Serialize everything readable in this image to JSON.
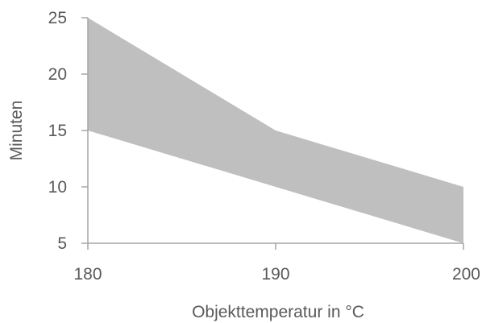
{
  "chart_data": {
    "type": "area",
    "x": [
      180,
      190,
      200
    ],
    "series": [
      {
        "values_lower": [
          15,
          10,
          5
        ],
        "values_upper": [
          25,
          15,
          10
        ]
      }
    ],
    "xlabel": "Objekttemperatur in °C",
    "ylabel": "Minuten",
    "xlim": [
      180,
      200
    ],
    "ylim": [
      5,
      25
    ],
    "xticks": [
      180,
      190,
      200
    ],
    "yticks": [
      5,
      10,
      15,
      20,
      25
    ],
    "grid": false,
    "fill_color": "#bfbfbf",
    "axis_color": "#a6a6a6"
  }
}
